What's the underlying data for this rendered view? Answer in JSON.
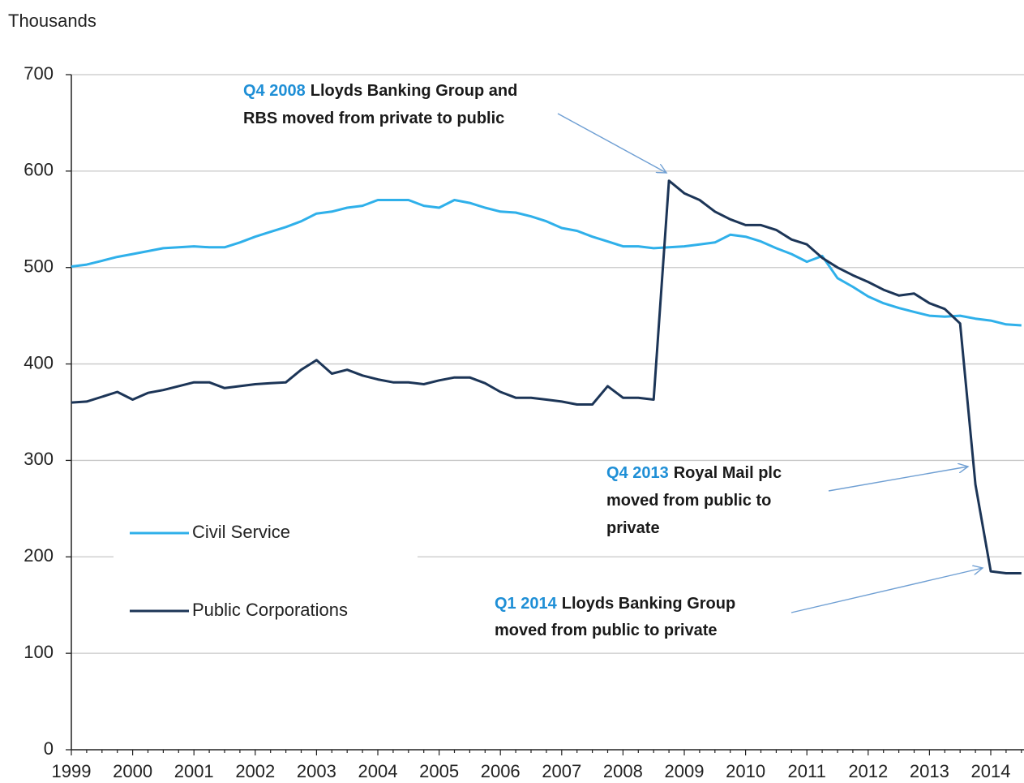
{
  "chart_data": {
    "type": "line",
    "y_label": "Thousands",
    "categories": [
      "1999",
      null,
      null,
      null,
      "2000",
      null,
      null,
      null,
      "2001",
      null,
      null,
      null,
      "2002",
      null,
      null,
      null,
      "2003",
      null,
      null,
      null,
      "2004",
      null,
      null,
      null,
      "2005",
      null,
      null,
      null,
      "2006",
      null,
      null,
      null,
      "2007",
      null,
      null,
      null,
      "2008",
      null,
      null,
      null,
      "2009",
      null,
      null,
      null,
      "2010",
      null,
      null,
      null,
      "2011",
      null,
      null,
      null,
      "2012",
      null,
      null,
      null,
      "2013",
      null,
      null,
      null,
      "2014",
      null,
      null
    ],
    "series": [
      {
        "name": "Civil Service",
        "color": "#2fb0ea",
        "values": [
          501,
          503,
          507,
          511,
          514,
          517,
          520,
          521,
          522,
          521,
          521,
          526,
          532,
          537,
          542,
          548,
          556,
          558,
          562,
          564,
          570,
          570,
          570,
          564,
          562,
          570,
          567,
          562,
          558,
          557,
          553,
          548,
          541,
          538,
          532,
          527,
          522,
          522,
          520,
          521,
          522,
          524,
          526,
          534,
          532,
          527,
          520,
          514,
          506,
          512,
          489,
          480,
          470,
          463,
          458,
          454,
          450,
          449,
          450,
          447,
          445,
          441,
          440
        ]
      },
      {
        "name": "Public Corporations",
        "color": "#1c3557",
        "values": [
          360,
          361,
          366,
          371,
          363,
          370,
          373,
          377,
          381,
          381,
          375,
          377,
          379,
          380,
          381,
          394,
          404,
          390,
          394,
          388,
          384,
          381,
          381,
          379,
          383,
          386,
          386,
          380,
          371,
          365,
          365,
          363,
          361,
          358,
          358,
          377,
          365,
          365,
          363,
          590,
          577,
          570,
          558,
          550,
          544,
          544,
          539,
          529,
          524,
          510,
          500,
          492,
          485,
          477,
          471,
          473,
          463,
          457,
          442,
          275,
          185,
          183,
          183
        ]
      }
    ],
    "ylim": [
      0,
      700
    ],
    "yticks": [
      0,
      100,
      200,
      300,
      400,
      500,
      600,
      700
    ],
    "grid": true,
    "legend_position": "center left",
    "annotations": [
      {
        "label": "Q4 2008",
        "lines": [
          "Lloyds Banking Group and",
          "RBS moved from private to public"
        ]
      },
      {
        "label": "Q4 2013",
        "lines": [
          "Royal Mail plc",
          "moved from public to",
          "private"
        ]
      },
      {
        "label": "Q1 2014",
        "lines": [
          "Lloyds Banking Group",
          "moved from public to private"
        ]
      }
    ]
  }
}
